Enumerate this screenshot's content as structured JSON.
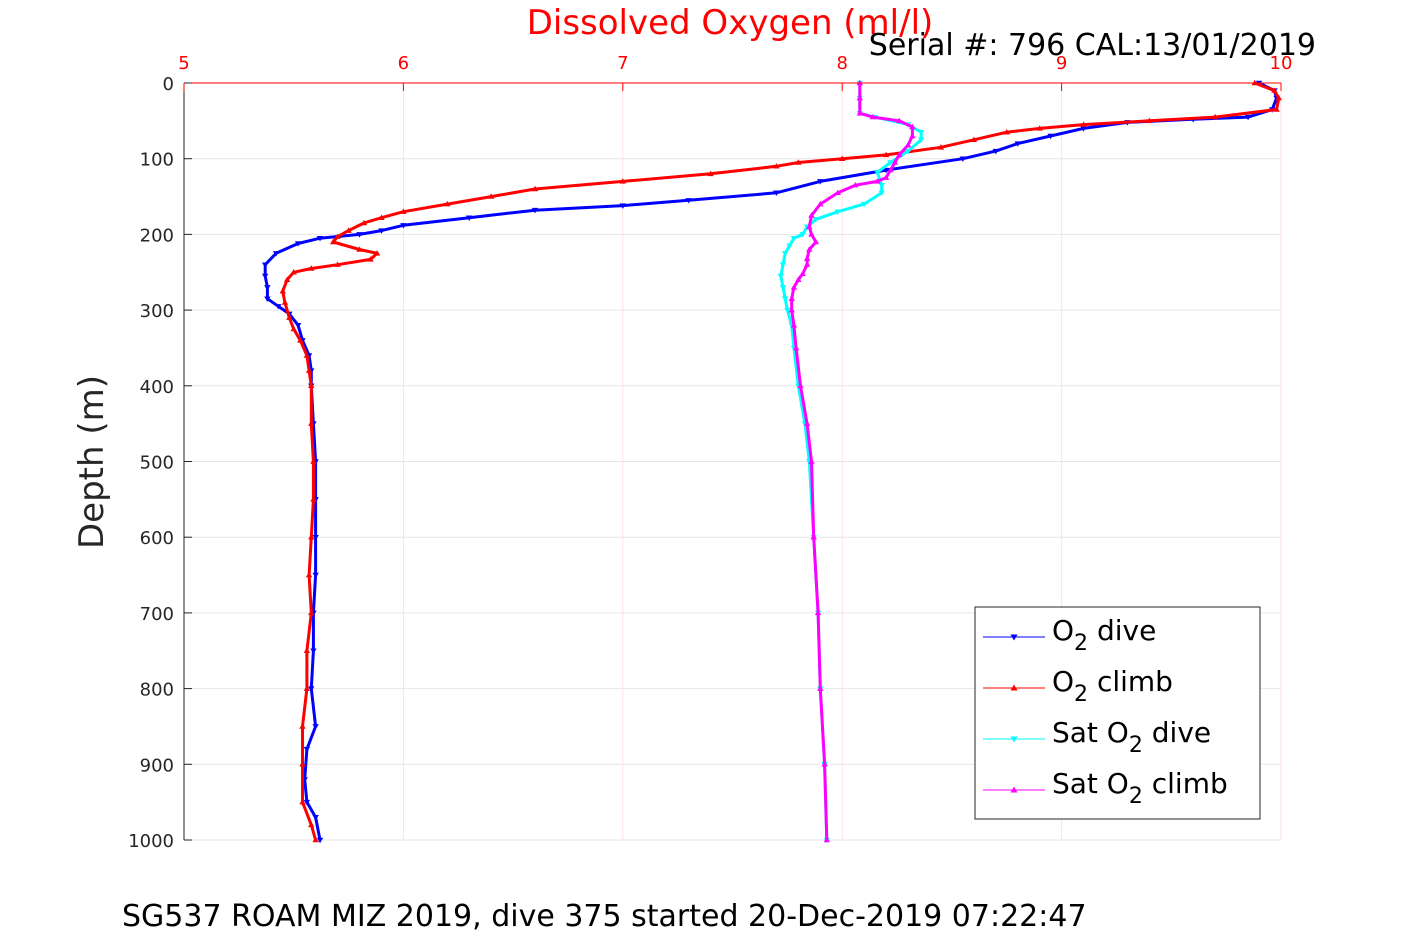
{
  "chart_data": {
    "type": "line",
    "title": "Serial #: 796  CAL:13/01/2019",
    "xlabel": "Dissolved Oxygen (ml/l)",
    "ylabel": "Depth (m)",
    "caption": "SG537 ROAM MIZ 2019, dive 375 started 20-Dec-2019 07:22:47",
    "xlim": [
      5,
      10
    ],
    "ylim": [
      0,
      1000
    ],
    "y_reversed": true,
    "x_axis_position": "top",
    "xticks": [
      "5",
      "6",
      "7",
      "8",
      "9",
      "10"
    ],
    "yticks": [
      "0",
      "100",
      "200",
      "300",
      "400",
      "500",
      "600",
      "700",
      "800",
      "900",
      "1000"
    ],
    "grid": true,
    "legend_position": "bottom-right",
    "series": [
      {
        "name_parts": [
          "O",
          "2",
          " dive"
        ],
        "color": "#0000ff",
        "marker": "triangle-down",
        "points": [
          [
            9.9,
            0
          ],
          [
            9.97,
            10
          ],
          [
            9.98,
            20
          ],
          [
            9.96,
            35
          ],
          [
            9.85,
            45
          ],
          [
            9.6,
            48
          ],
          [
            9.3,
            52
          ],
          [
            9.1,
            60
          ],
          [
            8.95,
            70
          ],
          [
            8.8,
            80
          ],
          [
            8.7,
            90
          ],
          [
            8.55,
            100
          ],
          [
            8.2,
            115
          ],
          [
            7.9,
            130
          ],
          [
            7.7,
            145
          ],
          [
            7.3,
            155
          ],
          [
            7.0,
            162
          ],
          [
            6.6,
            168
          ],
          [
            6.3,
            178
          ],
          [
            6.0,
            188
          ],
          [
            5.9,
            195
          ],
          [
            5.8,
            200
          ],
          [
            5.62,
            205
          ],
          [
            5.52,
            212
          ],
          [
            5.42,
            225
          ],
          [
            5.37,
            240
          ],
          [
            5.37,
            255
          ],
          [
            5.38,
            270
          ],
          [
            5.38,
            285
          ],
          [
            5.43,
            295
          ],
          [
            5.48,
            305
          ],
          [
            5.52,
            320
          ],
          [
            5.54,
            340
          ],
          [
            5.57,
            360
          ],
          [
            5.58,
            380
          ],
          [
            5.58,
            400
          ],
          [
            5.59,
            450
          ],
          [
            5.6,
            500
          ],
          [
            5.6,
            550
          ],
          [
            5.6,
            600
          ],
          [
            5.6,
            650
          ],
          [
            5.59,
            700
          ],
          [
            5.59,
            750
          ],
          [
            5.58,
            800
          ],
          [
            5.6,
            850
          ],
          [
            5.56,
            880
          ],
          [
            5.55,
            920
          ],
          [
            5.56,
            950
          ],
          [
            5.6,
            970
          ],
          [
            5.62,
            1000
          ]
        ]
      },
      {
        "name_parts": [
          "O",
          "2",
          " climb"
        ],
        "color": "#ff0000",
        "marker": "triangle-up",
        "points": [
          [
            9.88,
            0
          ],
          [
            9.97,
            10
          ],
          [
            9.99,
            20
          ],
          [
            9.98,
            35
          ],
          [
            9.7,
            45
          ],
          [
            9.4,
            50
          ],
          [
            9.1,
            55
          ],
          [
            8.9,
            60
          ],
          [
            8.75,
            65
          ],
          [
            8.6,
            75
          ],
          [
            8.45,
            85
          ],
          [
            8.2,
            95
          ],
          [
            8.0,
            100
          ],
          [
            7.8,
            105
          ],
          [
            7.7,
            110
          ],
          [
            7.4,
            120
          ],
          [
            7.0,
            130
          ],
          [
            6.6,
            140
          ],
          [
            6.4,
            150
          ],
          [
            6.2,
            160
          ],
          [
            6.0,
            170
          ],
          [
            5.9,
            178
          ],
          [
            5.82,
            185
          ],
          [
            5.75,
            195
          ],
          [
            5.7,
            203
          ],
          [
            5.68,
            210
          ],
          [
            5.8,
            220
          ],
          [
            5.88,
            225
          ],
          [
            5.85,
            233
          ],
          [
            5.7,
            240
          ],
          [
            5.58,
            245
          ],
          [
            5.5,
            250
          ],
          [
            5.47,
            260
          ],
          [
            5.45,
            275
          ],
          [
            5.46,
            290
          ],
          [
            5.48,
            310
          ],
          [
            5.5,
            325
          ],
          [
            5.53,
            340
          ],
          [
            5.56,
            360
          ],
          [
            5.57,
            380
          ],
          [
            5.58,
            400
          ],
          [
            5.58,
            450
          ],
          [
            5.59,
            500
          ],
          [
            5.59,
            550
          ],
          [
            5.58,
            600
          ],
          [
            5.57,
            650
          ],
          [
            5.58,
            700
          ],
          [
            5.56,
            750
          ],
          [
            5.56,
            800
          ],
          [
            5.54,
            850
          ],
          [
            5.54,
            900
          ],
          [
            5.54,
            950
          ],
          [
            5.58,
            980
          ],
          [
            5.6,
            1000
          ]
        ]
      },
      {
        "name_parts": [
          "Sat O",
          "2",
          " dive"
        ],
        "color": "#00ffff",
        "marker": "triangle-down",
        "points": [
          [
            8.08,
            0
          ],
          [
            8.08,
            20
          ],
          [
            8.08,
            40
          ],
          [
            8.15,
            45
          ],
          [
            8.3,
            55
          ],
          [
            8.36,
            65
          ],
          [
            8.36,
            75
          ],
          [
            8.3,
            90
          ],
          [
            8.22,
            105
          ],
          [
            8.16,
            118
          ],
          [
            8.18,
            135
          ],
          [
            8.18,
            145
          ],
          [
            8.1,
            160
          ],
          [
            7.98,
            170
          ],
          [
            7.88,
            180
          ],
          [
            7.84,
            190
          ],
          [
            7.82,
            200
          ],
          [
            7.78,
            205
          ],
          [
            7.76,
            215
          ],
          [
            7.74,
            225
          ],
          [
            7.73,
            240
          ],
          [
            7.72,
            255
          ],
          [
            7.73,
            270
          ],
          [
            7.74,
            285
          ],
          [
            7.75,
            300
          ],
          [
            7.77,
            320
          ],
          [
            7.78,
            350
          ],
          [
            7.8,
            400
          ],
          [
            7.83,
            450
          ],
          [
            7.85,
            500
          ],
          [
            7.87,
            600
          ],
          [
            7.89,
            700
          ],
          [
            7.9,
            800
          ],
          [
            7.92,
            900
          ],
          [
            7.93,
            1000
          ]
        ]
      },
      {
        "name_parts": [
          "Sat O",
          "2",
          " climb"
        ],
        "color": "#ff00ff",
        "marker": "triangle-up",
        "points": [
          [
            8.08,
            0
          ],
          [
            8.08,
            20
          ],
          [
            8.08,
            40
          ],
          [
            8.14,
            45
          ],
          [
            8.26,
            50
          ],
          [
            8.32,
            58
          ],
          [
            8.32,
            70
          ],
          [
            8.3,
            82
          ],
          [
            8.26,
            95
          ],
          [
            8.24,
            105
          ],
          [
            8.22,
            115
          ],
          [
            8.2,
            125
          ],
          [
            8.16,
            130
          ],
          [
            8.06,
            135
          ],
          [
            7.98,
            145
          ],
          [
            7.9,
            160
          ],
          [
            7.86,
            175
          ],
          [
            7.85,
            190
          ],
          [
            7.86,
            200
          ],
          [
            7.88,
            210
          ],
          [
            7.85,
            220
          ],
          [
            7.84,
            232
          ],
          [
            7.84,
            240
          ],
          [
            7.82,
            252
          ],
          [
            7.8,
            260
          ],
          [
            7.78,
            270
          ],
          [
            7.77,
            285
          ],
          [
            7.77,
            300
          ],
          [
            7.78,
            320
          ],
          [
            7.79,
            350
          ],
          [
            7.81,
            400
          ],
          [
            7.84,
            450
          ],
          [
            7.86,
            500
          ],
          [
            7.87,
            600
          ],
          [
            7.89,
            700
          ],
          [
            7.9,
            800
          ],
          [
            7.92,
            900
          ],
          [
            7.93,
            1000
          ]
        ]
      }
    ]
  }
}
